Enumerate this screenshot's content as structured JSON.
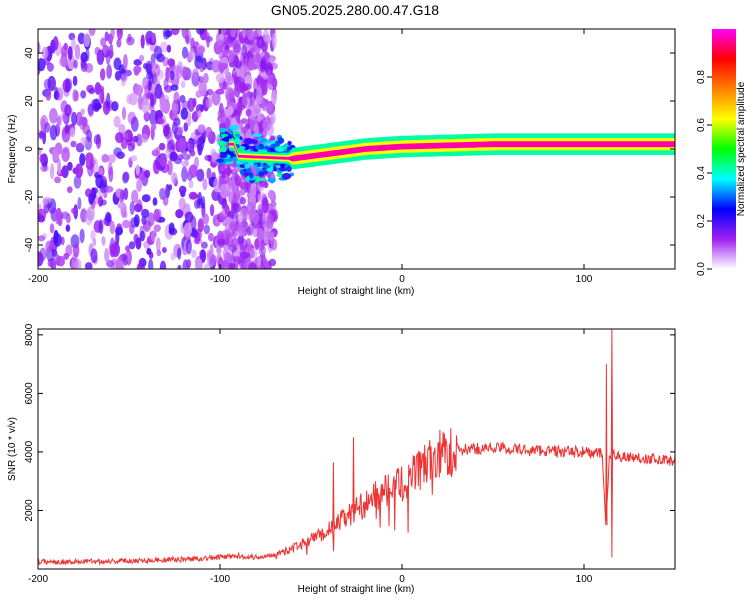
{
  "figure": {
    "title": "GN05.2025.280.00.47.G18"
  },
  "colors": {
    "snr_line": "#ee3333",
    "frame": "#000000",
    "background": "#ffffff",
    "spectral_colormap": [
      "#ffffff",
      "#a020f0",
      "#0000ff",
      "#00ffff",
      "#00ff00",
      "#ffff00",
      "#ff8000",
      "#ff0000",
      "#ff00ff"
    ]
  },
  "chart_data": [
    {
      "type": "heatmap",
      "title": "",
      "xlabel": "Height of straight line (km)",
      "ylabel": "Frequency (Hz)",
      "xlim": [
        -200,
        150
      ],
      "ylim": [
        -50,
        50
      ],
      "x_ticks": [
        -200,
        -100,
        0,
        100
      ],
      "y_ticks": [
        -40,
        -20,
        0,
        20,
        40
      ],
      "grid": false,
      "colorbar": {
        "label": "Normalized spectral amplitude",
        "range": [
          0.0,
          1.0
        ],
        "ticks": [
          "0.0",
          "0.2",
          "0.4",
          "0.6",
          "0.8"
        ]
      },
      "description": [
        {
          "x_range": [
            -200,
            -100
          ],
          "freq_spread": [
            -50,
            50
          ],
          "amplitude": [
            0.05,
            0.2
          ]
        },
        {
          "x_range": [
            -100,
            -70
          ],
          "freq_spread": [
            -50,
            50
          ],
          "amplitude": [
            0.05,
            0.15
          ]
        },
        {
          "x_range": [
            -100,
            -60
          ],
          "freq_spread": [
            -10,
            10
          ],
          "amplitude": [
            0.2,
            0.45
          ]
        },
        {
          "x_range": [
            -60,
            -10
          ],
          "freq_spread": [
            -5,
            3
          ],
          "amplitude": [
            0.4,
            0.95
          ]
        },
        {
          "x_range": [
            -10,
            150
          ],
          "freq_spread": [
            0,
            4
          ],
          "amplitude": [
            0.4,
            1.0
          ]
        }
      ],
      "ridge": [
        {
          "x": -90,
          "freq": -3
        },
        {
          "x": -60,
          "freq": -4
        },
        {
          "x": -40,
          "freq": -2
        },
        {
          "x": -20,
          "freq": 0
        },
        {
          "x": 0,
          "freq": 1
        },
        {
          "x": 50,
          "freq": 2
        },
        {
          "x": 112,
          "freq": 2
        },
        {
          "x": 150,
          "freq": 2
        }
      ]
    },
    {
      "type": "line",
      "title": "",
      "xlabel": "Height of straight line (km)",
      "ylabel": "SNR (10 * v/v)",
      "xlim": [
        -200,
        150
      ],
      "ylim": [
        0,
        8200
      ],
      "x_ticks": [
        -200,
        -100,
        0,
        100
      ],
      "y_ticks": [
        2000,
        4000,
        6000,
        8000
      ],
      "grid": false,
      "series": [
        {
          "name": "",
          "x": [
            -200,
            -180,
            -150,
            -120,
            -100,
            -90,
            -80,
            -70,
            -60,
            -50,
            -40,
            -30,
            -20,
            -10,
            0,
            10,
            20,
            30,
            40,
            50,
            60,
            70,
            80,
            90,
            100,
            105,
            110,
            112,
            114,
            116,
            120,
            130,
            140,
            150
          ],
          "y": [
            250,
            250,
            280,
            330,
            400,
            450,
            400,
            500,
            700,
            1000,
            1350,
            1800,
            2250,
            2650,
            2900,
            3400,
            3900,
            4050,
            4100,
            4150,
            4100,
            4050,
            4050,
            4000,
            4000,
            3950,
            3950,
            1500,
            3800,
            3950,
            3850,
            3800,
            3750,
            3700
          ]
        }
      ],
      "spikes": [
        {
          "x": -38,
          "y": 3650
        },
        {
          "x": -27,
          "y": 4500
        },
        {
          "x": 112,
          "y": 7000
        },
        {
          "x": 115,
          "y": 8200
        },
        {
          "x": 115,
          "y": 400
        }
      ]
    }
  ]
}
